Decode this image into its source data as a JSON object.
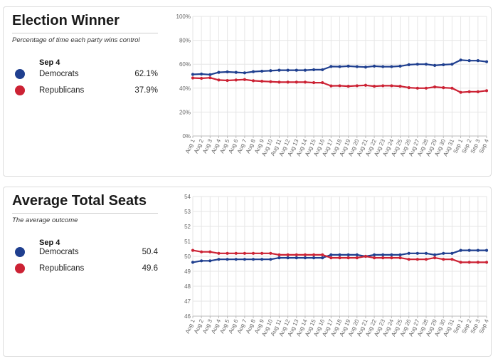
{
  "colors": {
    "democrats": "#1f3f8f",
    "republicans": "#cc2234",
    "grid": "#e6e6e6",
    "axis_text": "#666666"
  },
  "panels": [
    {
      "title": "Election Winner",
      "subtitle": "Percentage of time each party wins control",
      "date": "Sep 4",
      "legend": [
        {
          "name": "Democrats",
          "value": "62.1%"
        },
        {
          "name": "Republicans",
          "value": "37.9%"
        }
      ]
    },
    {
      "title": "Average Total Seats",
      "subtitle": "The average outcome",
      "date": "Sep 4",
      "legend": [
        {
          "name": "Democrats",
          "value": "50.4"
        },
        {
          "name": "Republicans",
          "value": "49.6"
        }
      ]
    }
  ],
  "chart_data": [
    {
      "type": "line",
      "x": [
        "Aug 1",
        "Aug 2",
        "Aug 3",
        "Aug 4",
        "Aug 5",
        "Aug 6",
        "Aug 7",
        "Aug 8",
        "Aug 9",
        "Aug 10",
        "Aug 11",
        "Aug 12",
        "Aug 13",
        "Aug 14",
        "Aug 15",
        "Aug 16",
        "Aug 17",
        "Aug 18",
        "Aug 19",
        "Aug 20",
        "Aug 21",
        "Aug 22",
        "Aug 23",
        "Aug 24",
        "Aug 25",
        "Aug 26",
        "Aug 27",
        "Aug 28",
        "Aug 29",
        "Aug 30",
        "Aug 31",
        "Sep 1",
        "Sep 2",
        "Sep 3",
        "Sep 4"
      ],
      "ylim": [
        0,
        100
      ],
      "yticks": [
        0,
        20,
        40,
        60,
        80,
        100
      ],
      "ytick_labels": [
        "0%",
        "20%",
        "40%",
        "60%",
        "80%",
        "100%"
      ],
      "grid": true,
      "series": [
        {
          "name": "Democrats",
          "color": "#1f3f8f",
          "values": [
            51.5,
            51.8,
            51.3,
            53.2,
            53.6,
            53.2,
            52.8,
            53.8,
            54.2,
            54.6,
            55.0,
            55.0,
            55.0,
            55.0,
            55.4,
            55.4,
            58.1,
            58.0,
            58.4,
            58.0,
            57.6,
            58.4,
            58.0,
            58.0,
            58.4,
            59.6,
            60.0,
            60.0,
            59.0,
            59.6,
            60.0,
            63.5,
            63.0,
            63.0,
            62.1
          ]
        },
        {
          "name": "Republicans",
          "color": "#cc2234",
          "values": [
            48.5,
            48.2,
            48.7,
            46.8,
            46.4,
            46.8,
            47.2,
            46.2,
            45.8,
            45.4,
            45.0,
            45.0,
            45.0,
            45.0,
            44.6,
            44.6,
            41.9,
            42.0,
            41.6,
            42.0,
            42.4,
            41.6,
            42.0,
            42.0,
            41.6,
            40.4,
            40.0,
            40.0,
            41.0,
            40.4,
            40.0,
            36.5,
            37.0,
            37.0,
            37.9
          ]
        }
      ]
    },
    {
      "type": "line",
      "x": [
        "Aug 1",
        "Aug 2",
        "Aug 3",
        "Aug 4",
        "Aug 5",
        "Aug 6",
        "Aug 7",
        "Aug 8",
        "Aug 9",
        "Aug 10",
        "Aug 11",
        "Aug 12",
        "Aug 13",
        "Aug 14",
        "Aug 15",
        "Aug 16",
        "Aug 17",
        "Aug 18",
        "Aug 19",
        "Aug 20",
        "Aug 21",
        "Aug 22",
        "Aug 23",
        "Aug 24",
        "Aug 25",
        "Aug 26",
        "Aug 27",
        "Aug 28",
        "Aug 29",
        "Aug 30",
        "Aug 31",
        "Sep 1",
        "Sep 2",
        "Sep 3",
        "Sep 4"
      ],
      "ylim": [
        46,
        54
      ],
      "yticks": [
        46,
        47,
        48,
        49,
        50,
        51,
        52,
        53,
        54
      ],
      "ytick_labels": [
        "46",
        "47",
        "48",
        "49",
        "50",
        "51",
        "52",
        "53",
        "54"
      ],
      "grid": true,
      "series": [
        {
          "name": "Democrats",
          "color": "#1f3f8f",
          "values": [
            49.6,
            49.7,
            49.7,
            49.8,
            49.8,
            49.8,
            49.8,
            49.8,
            49.8,
            49.8,
            49.9,
            49.9,
            49.9,
            49.9,
            49.9,
            49.9,
            50.1,
            50.1,
            50.1,
            50.1,
            50.0,
            50.1,
            50.1,
            50.1,
            50.1,
            50.2,
            50.2,
            50.2,
            50.1,
            50.2,
            50.2,
            50.4,
            50.4,
            50.4,
            50.4
          ]
        },
        {
          "name": "Republicans",
          "color": "#cc2234",
          "values": [
            50.4,
            50.3,
            50.3,
            50.2,
            50.2,
            50.2,
            50.2,
            50.2,
            50.2,
            50.2,
            50.1,
            50.1,
            50.1,
            50.1,
            50.1,
            50.1,
            49.9,
            49.9,
            49.9,
            49.9,
            50.0,
            49.9,
            49.9,
            49.9,
            49.9,
            49.8,
            49.8,
            49.8,
            49.9,
            49.8,
            49.8,
            49.6,
            49.6,
            49.6,
            49.6
          ]
        }
      ]
    }
  ]
}
